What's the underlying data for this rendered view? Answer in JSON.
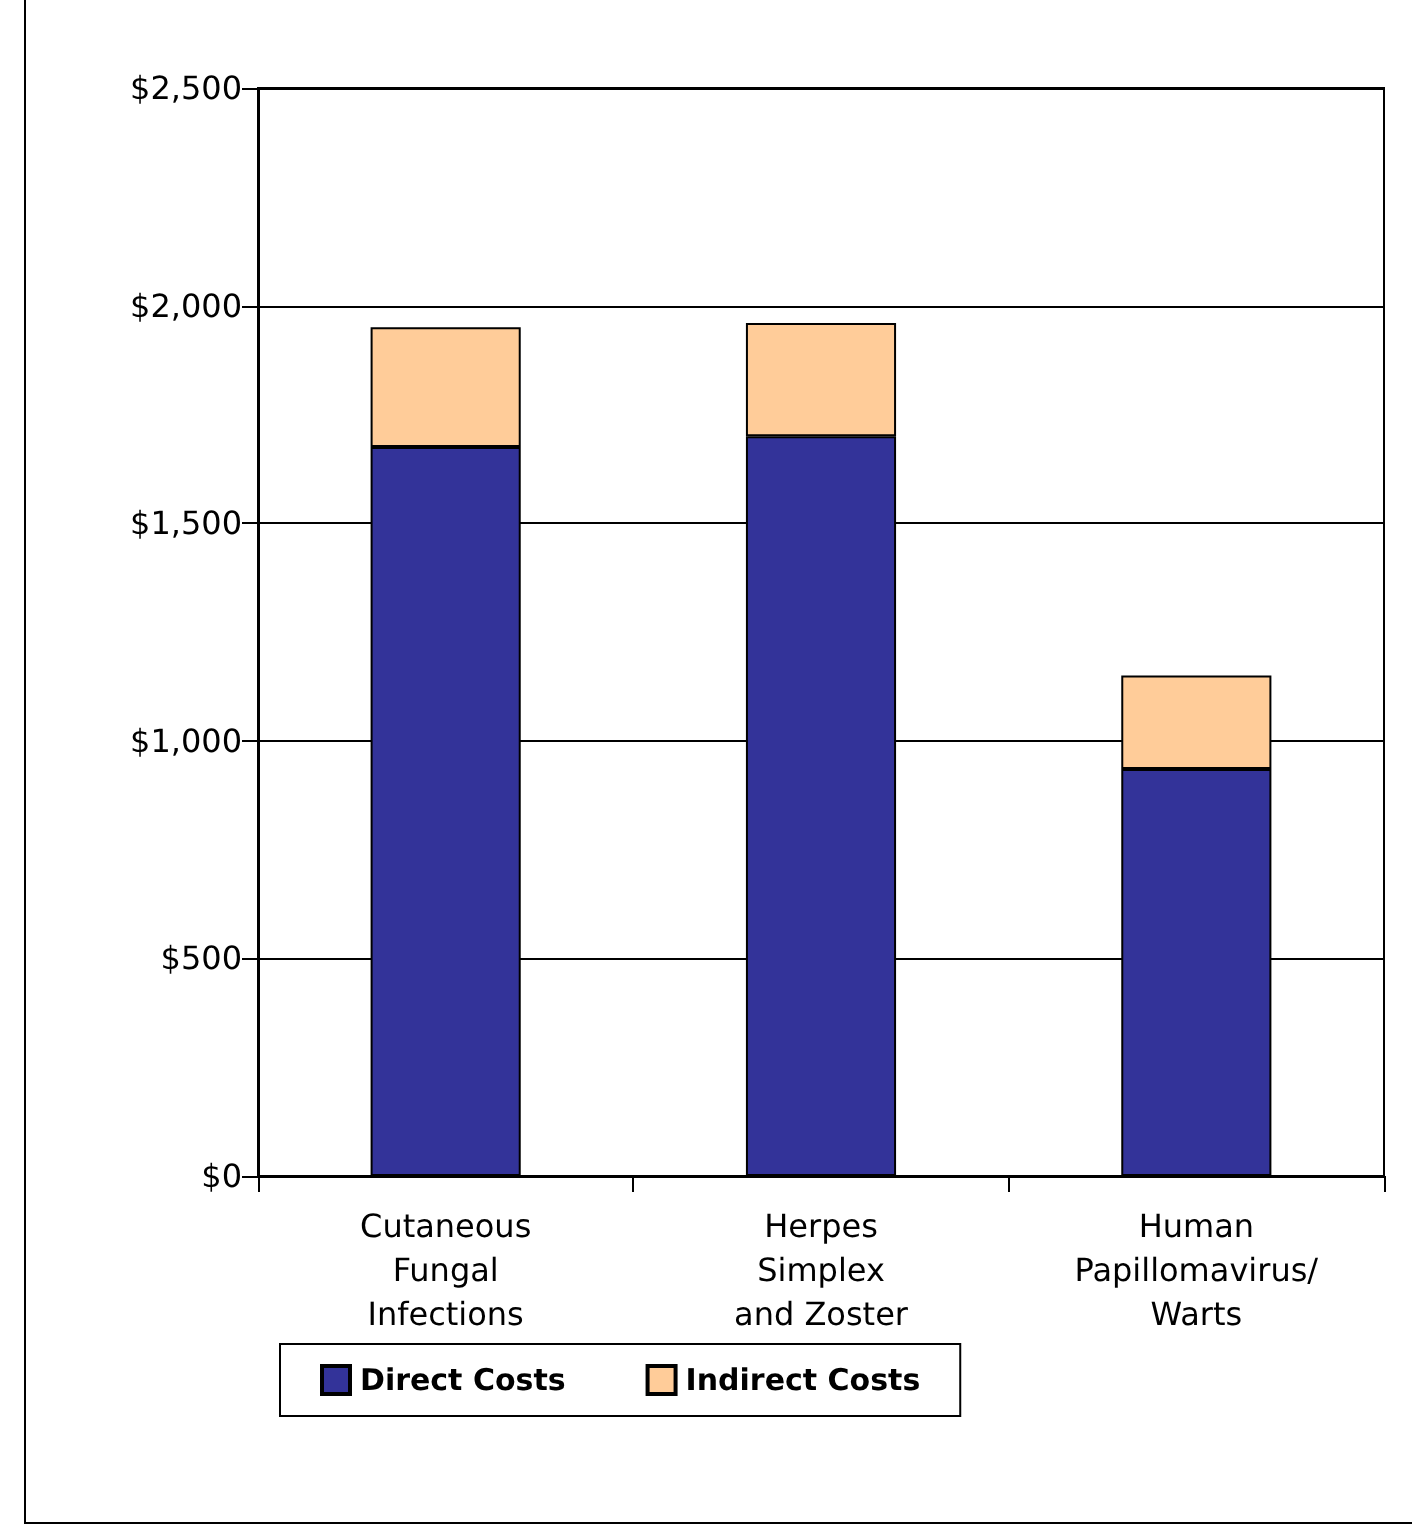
{
  "chart_data": {
    "type": "bar",
    "stacked": true,
    "categories": [
      "Cutaneous\nFungal\nInfections",
      "Herpes\nSimplex\nand Zoster",
      "Human\nPapillomavirus/\nWarts"
    ],
    "series": [
      {
        "name": "Direct Costs",
        "color": "#333399",
        "values": [
          1675,
          1700,
          935
        ]
      },
      {
        "name": "Indirect Costs",
        "color": "#ffcc99",
        "values": [
          275,
          260,
          215
        ]
      }
    ],
    "ylim": [
      0,
      2500
    ],
    "yticks": [
      {
        "value": 0,
        "label": "$0"
      },
      {
        "value": 500,
        "label": "$500"
      },
      {
        "value": 1000,
        "label": "$1,000"
      },
      {
        "value": 1500,
        "label": "$1,500"
      },
      {
        "value": 2000,
        "label": "$2,000"
      },
      {
        "value": 2500,
        "label": "$2,500"
      }
    ],
    "grid": "y",
    "legend": "bottom"
  }
}
